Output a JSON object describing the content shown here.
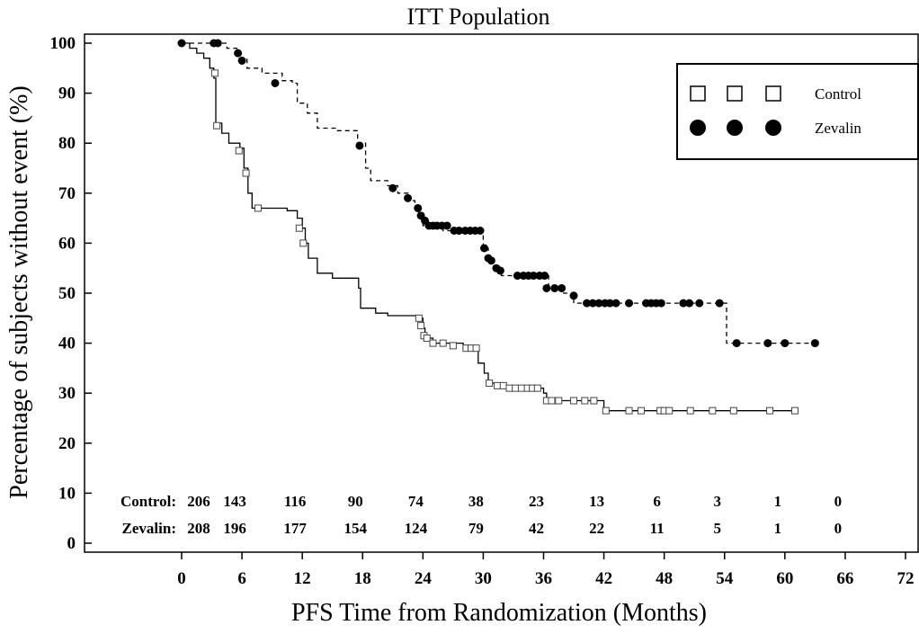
{
  "chart_data": {
    "type": "line",
    "title": "ITT Population",
    "xlabel": "PFS Time from Randomization (Months)",
    "ylabel": "Percentage of subjects without event (%)",
    "xlim": [
      -9,
      73
    ],
    "ylim": [
      -1,
      101
    ],
    "xticks": [
      0,
      6,
      12,
      18,
      24,
      30,
      36,
      42,
      48,
      54,
      60,
      66,
      72
    ],
    "yticks": [
      0,
      10,
      20,
      30,
      40,
      50,
      60,
      70,
      80,
      90,
      100
    ],
    "legend": {
      "placement": "top-right",
      "entries": [
        {
          "name": "Control",
          "marker": "open-square"
        },
        {
          "name": "Zevalin",
          "marker": "filled-circle"
        }
      ]
    },
    "series": [
      {
        "name": "Control",
        "line": "solid",
        "color": "#000000",
        "steps": [
          [
            0,
            100
          ],
          [
            0.8,
            99
          ],
          [
            1.5,
            98
          ],
          [
            2.2,
            97
          ],
          [
            2.8,
            95
          ],
          [
            3.2,
            93
          ],
          [
            3.4,
            84
          ],
          [
            4,
            82
          ],
          [
            4.7,
            80
          ],
          [
            5.8,
            79
          ],
          [
            6.2,
            75
          ],
          [
            6.6,
            70
          ],
          [
            7,
            67
          ],
          [
            10.5,
            66.5
          ],
          [
            11.5,
            65
          ],
          [
            12,
            63
          ],
          [
            12.3,
            60
          ],
          [
            12.6,
            57
          ],
          [
            13.5,
            54
          ],
          [
            15,
            53
          ],
          [
            17.6,
            51
          ],
          [
            17.8,
            47
          ],
          [
            19.3,
            46
          ],
          [
            20.5,
            45.5
          ],
          [
            23.8,
            45
          ],
          [
            24,
            43
          ],
          [
            24.2,
            41
          ],
          [
            25,
            40
          ],
          [
            28,
            39
          ],
          [
            29.5,
            36
          ],
          [
            30.1,
            34
          ],
          [
            30.5,
            32
          ],
          [
            32,
            31
          ],
          [
            36,
            30
          ],
          [
            36.3,
            28.5
          ],
          [
            42,
            26.5
          ],
          [
            61,
            26.5
          ]
        ],
        "censored": [
          [
            3.3,
            94
          ],
          [
            3.5,
            83.5
          ],
          [
            5.7,
            78.5
          ],
          [
            6.4,
            74
          ],
          [
            7.6,
            67
          ],
          [
            11.7,
            63
          ],
          [
            12.1,
            60
          ],
          [
            23.6,
            45
          ],
          [
            23.8,
            43.5
          ],
          [
            24.1,
            41.5
          ],
          [
            24.4,
            41
          ],
          [
            25,
            40
          ],
          [
            26,
            40
          ],
          [
            27,
            39.5
          ],
          [
            28.3,
            39
          ],
          [
            28.8,
            39
          ],
          [
            29.3,
            39
          ],
          [
            30.6,
            32
          ],
          [
            31.4,
            31.5
          ],
          [
            32,
            31.5
          ],
          [
            32.6,
            31
          ],
          [
            33.2,
            31
          ],
          [
            33.8,
            31
          ],
          [
            34.4,
            31
          ],
          [
            34.9,
            31
          ],
          [
            35.4,
            31
          ],
          [
            36.3,
            28.5
          ],
          [
            36.8,
            28.5
          ],
          [
            37.5,
            28.5
          ],
          [
            39,
            28.5
          ],
          [
            40.1,
            28.5
          ],
          [
            41,
            28.5
          ],
          [
            42.2,
            26.5
          ],
          [
            44.5,
            26.5
          ],
          [
            45.7,
            26.5
          ],
          [
            47.6,
            26.5
          ],
          [
            48,
            26.5
          ],
          [
            48.5,
            26.5
          ],
          [
            50.6,
            26.5
          ],
          [
            52.8,
            26.5
          ],
          [
            54.9,
            26.5
          ],
          [
            58.5,
            26.5
          ],
          [
            61,
            26.5
          ]
        ]
      },
      {
        "name": "Zevalin",
        "line": "dashed",
        "color": "#000000",
        "steps": [
          [
            0,
            100
          ],
          [
            4.5,
            99
          ],
          [
            5.5,
            97
          ],
          [
            6.5,
            95
          ],
          [
            8,
            94
          ],
          [
            10,
            92.5
          ],
          [
            11,
            92
          ],
          [
            11.5,
            88
          ],
          [
            12.5,
            86
          ],
          [
            13.5,
            83
          ],
          [
            15.5,
            82.5
          ],
          [
            17.5,
            80
          ],
          [
            18.3,
            75
          ],
          [
            18.8,
            72.5
          ],
          [
            20.5,
            71.5
          ],
          [
            21.5,
            70
          ],
          [
            22.5,
            68.5
          ],
          [
            23.2,
            67
          ],
          [
            23.6,
            65
          ],
          [
            24,
            63.5
          ],
          [
            25,
            63.5
          ],
          [
            26,
            62.5
          ],
          [
            29,
            62
          ],
          [
            30,
            59
          ],
          [
            30.5,
            57
          ],
          [
            31,
            55
          ],
          [
            31.8,
            53.5
          ],
          [
            36,
            53.5
          ],
          [
            36.5,
            51
          ],
          [
            38,
            50
          ],
          [
            39,
            48
          ],
          [
            54,
            48
          ],
          [
            54.2,
            40
          ],
          [
            63,
            40
          ]
        ],
        "censored": [
          [
            0,
            100
          ],
          [
            3.2,
            100
          ],
          [
            3.6,
            100
          ],
          [
            5.6,
            98
          ],
          [
            6,
            96.5
          ],
          [
            9.3,
            92
          ],
          [
            17.7,
            79.5
          ],
          [
            21,
            71
          ],
          [
            22.5,
            69
          ],
          [
            23.5,
            67
          ],
          [
            23.8,
            65.5
          ],
          [
            24.2,
            64.5
          ],
          [
            24.6,
            63.5
          ],
          [
            25,
            63.5
          ],
          [
            25.4,
            63.5
          ],
          [
            25.9,
            63.5
          ],
          [
            26.4,
            63.5
          ],
          [
            27.1,
            62.5
          ],
          [
            27.6,
            62.5
          ],
          [
            28.2,
            62.5
          ],
          [
            28.7,
            62.5
          ],
          [
            29.2,
            62.5
          ],
          [
            29.7,
            62.5
          ],
          [
            30.1,
            59
          ],
          [
            30.5,
            57
          ],
          [
            30.8,
            56.5
          ],
          [
            31.3,
            55
          ],
          [
            31.7,
            54.5
          ],
          [
            33.4,
            53.5
          ],
          [
            34,
            53.5
          ],
          [
            34.5,
            53.5
          ],
          [
            35,
            53.5
          ],
          [
            35.6,
            53.5
          ],
          [
            36.1,
            53.5
          ],
          [
            36.3,
            51
          ],
          [
            37.1,
            51
          ],
          [
            37.8,
            51
          ],
          [
            39,
            49.5
          ],
          [
            40.3,
            48
          ],
          [
            40.9,
            48
          ],
          [
            41.5,
            48
          ],
          [
            42.1,
            48
          ],
          [
            42.6,
            48
          ],
          [
            43.2,
            48
          ],
          [
            44.5,
            48
          ],
          [
            46.2,
            48
          ],
          [
            46.7,
            48
          ],
          [
            47.2,
            48
          ],
          [
            47.7,
            48
          ],
          [
            49.9,
            48
          ],
          [
            50.5,
            48
          ],
          [
            51.5,
            48
          ],
          [
            53.5,
            48
          ],
          [
            55.2,
            40
          ],
          [
            58.3,
            40
          ],
          [
            60,
            40
          ],
          [
            63,
            40
          ]
        ]
      }
    ],
    "risk_table": {
      "rows": [
        {
          "label": "Control:",
          "values": [
            "206",
            "143",
            "116",
            "90",
            "74",
            "38",
            "23",
            "13",
            "6",
            "3",
            "1",
            "0"
          ]
        },
        {
          "label": "Zevalin:",
          "values": [
            "208",
            "196",
            "177",
            "154",
            "124",
            "79",
            "42",
            "22",
            "11",
            "5",
            "1",
            "0"
          ]
        }
      ],
      "x": [
        0,
        6,
        12,
        18,
        24,
        30,
        36,
        42,
        48,
        54,
        60,
        66,
        72
      ]
    }
  }
}
